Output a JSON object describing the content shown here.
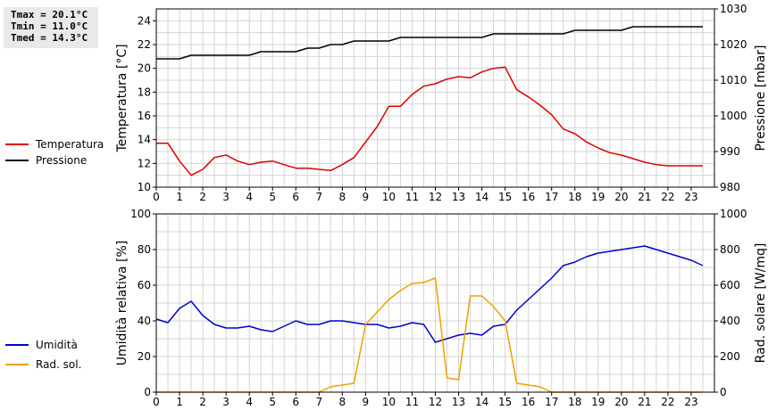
{
  "stats": {
    "tmax": "Tmax = 20.1°C",
    "tmin": "Tmin = 11.0°C",
    "tmed": "Tmed = 14.3°C"
  },
  "chart_data": [
    {
      "type": "line",
      "xlim": [
        0,
        24
      ],
      "xticks": [
        0,
        1,
        2,
        3,
        4,
        5,
        6,
        7,
        8,
        9,
        10,
        11,
        12,
        13,
        14,
        15,
        16,
        17,
        18,
        19,
        20,
        21,
        22,
        23
      ],
      "ylabel": "Temperatura [°C]",
      "ylim": [
        10,
        25
      ],
      "yticks": [
        10,
        12,
        14,
        16,
        18,
        20,
        22,
        24
      ],
      "ylabel2": "Pressione [mbar]",
      "ylim2": [
        980,
        1030
      ],
      "yticks2": [
        980,
        990,
        1000,
        1010,
        1020,
        1030
      ],
      "grid": true,
      "legend_position": "left",
      "series": [
        {
          "name": "Temperatura",
          "color": "#dd0000",
          "axis": "left",
          "x": [
            0,
            0.5,
            1,
            1.5,
            2,
            2.5,
            3,
            3.5,
            4,
            4.5,
            5,
            5.5,
            6,
            6.5,
            7,
            7.5,
            8,
            8.5,
            9,
            9.5,
            10,
            10.5,
            11,
            11.5,
            12,
            12.5,
            13,
            13.5,
            14,
            14.5,
            15,
            15.5,
            16,
            16.5,
            17,
            17.5,
            18,
            18.5,
            19,
            19.5,
            20,
            20.5,
            21,
            21.5,
            22,
            22.5,
            23,
            23.5
          ],
          "y": [
            13.7,
            13.7,
            12.2,
            11.0,
            11.5,
            12.5,
            12.7,
            12.2,
            11.9,
            12.1,
            12.2,
            11.9,
            11.6,
            11.6,
            11.5,
            11.4,
            11.9,
            12.5,
            13.8,
            15.1,
            16.8,
            16.8,
            17.8,
            18.5,
            18.7,
            19.1,
            19.3,
            19.2,
            19.7,
            20.0,
            20.1,
            18.2,
            17.6,
            16.9,
            16.1,
            14.9,
            14.5,
            13.8,
            13.3,
            12.9,
            12.7,
            12.4,
            12.1,
            11.9,
            11.8,
            11.8,
            11.8,
            11.8
          ]
        },
        {
          "name": "Pressione",
          "color": "#000000",
          "axis": "right",
          "x": [
            0,
            0.5,
            1,
            1.5,
            2,
            2.5,
            3,
            3.5,
            4,
            4.5,
            5,
            5.5,
            6,
            6.5,
            7,
            7.5,
            8,
            8.5,
            9,
            9.5,
            10,
            10.5,
            11,
            11.5,
            12,
            12.5,
            13,
            13.5,
            14,
            14.5,
            15,
            15.5,
            16,
            16.5,
            17,
            17.5,
            18,
            18.5,
            19,
            19.5,
            20,
            20.5,
            21,
            21.5,
            22,
            22.5,
            23,
            23.5
          ],
          "y": [
            1016,
            1016,
            1016,
            1017,
            1017,
            1017,
            1017,
            1017,
            1017,
            1018,
            1018,
            1018,
            1018,
            1019,
            1019,
            1020,
            1020,
            1021,
            1021,
            1021,
            1021,
            1022,
            1022,
            1022,
            1022,
            1022,
            1022,
            1022,
            1022,
            1023,
            1023,
            1023,
            1023,
            1023,
            1023,
            1023,
            1024,
            1024,
            1024,
            1024,
            1024,
            1025,
            1025,
            1025,
            1025,
            1025,
            1025,
            1025
          ]
        }
      ]
    },
    {
      "type": "line",
      "xlim": [
        0,
        24
      ],
      "xticks": [
        0,
        1,
        2,
        3,
        4,
        5,
        6,
        7,
        8,
        9,
        10,
        11,
        12,
        13,
        14,
        15,
        16,
        17,
        18,
        19,
        20,
        21,
        22,
        23
      ],
      "ylabel": "Umidità relativa [%]",
      "ylim": [
        0,
        100
      ],
      "yticks": [
        0,
        20,
        40,
        60,
        80,
        100
      ],
      "ylabel2": "Rad. solare [W/mq]",
      "ylim2": [
        0,
        1000
      ],
      "yticks2": [
        0,
        200,
        400,
        600,
        800,
        1000
      ],
      "grid": true,
      "legend_position": "left",
      "series": [
        {
          "name": "Umidità",
          "color": "#0000cc",
          "axis": "left",
          "x": [
            0,
            0.5,
            1,
            1.5,
            2,
            2.5,
            3,
            3.5,
            4,
            4.5,
            5,
            5.5,
            6,
            6.5,
            7,
            7.5,
            8,
            8.5,
            9,
            9.5,
            10,
            10.5,
            11,
            11.5,
            12,
            12.5,
            13,
            13.5,
            14,
            14.5,
            15,
            15.5,
            16,
            16.5,
            17,
            17.5,
            18,
            18.5,
            19,
            19.5,
            20,
            20.5,
            21,
            21.5,
            22,
            22.5,
            23,
            23.5
          ],
          "y": [
            41,
            39,
            47,
            51,
            43,
            38,
            36,
            36,
            37,
            35,
            34,
            37,
            40,
            38,
            38,
            40,
            40,
            39,
            38,
            38,
            36,
            37,
            39,
            38,
            28,
            30,
            32,
            33,
            32,
            37,
            38,
            46,
            52,
            58,
            64,
            71,
            73,
            76,
            78,
            79,
            80,
            81,
            82,
            80,
            78,
            76,
            74,
            71
          ]
        },
        {
          "name": "Rad. sol.",
          "color": "#f0a000",
          "axis": "right",
          "x": [
            0,
            0.5,
            1,
            1.5,
            2,
            2.5,
            3,
            3.5,
            4,
            4.5,
            5,
            5.5,
            6,
            6.5,
            7,
            7.5,
            8,
            8.5,
            9,
            9.5,
            10,
            10.5,
            11,
            11.5,
            12,
            12.5,
            13,
            13.5,
            14,
            14.5,
            15,
            15.5,
            16,
            16.5,
            17,
            17.5,
            18,
            18.5,
            19,
            19.5,
            20,
            20.5,
            21,
            21.5,
            22,
            22.5,
            23,
            23.5
          ],
          "y": [
            0,
            0,
            0,
            0,
            0,
            0,
            0,
            0,
            0,
            0,
            0,
            0,
            0,
            0,
            0,
            30,
            40,
            50,
            380,
            450,
            520,
            570,
            610,
            615,
            640,
            80,
            70,
            540,
            540,
            480,
            400,
            50,
            40,
            30,
            0,
            0,
            0,
            0,
            0,
            0,
            0,
            0,
            0,
            0,
            0,
            0,
            0,
            0
          ]
        }
      ]
    }
  ]
}
